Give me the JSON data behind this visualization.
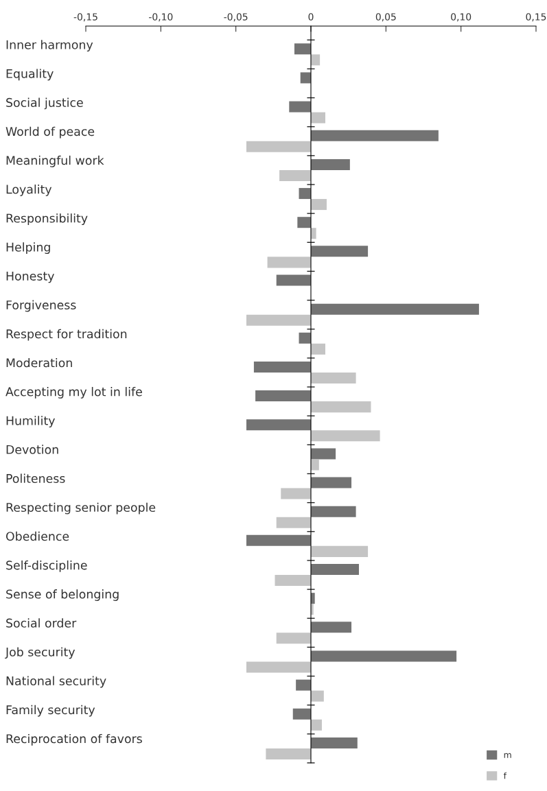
{
  "chart_data": {
    "type": "bar",
    "orientation": "horizontal",
    "categories": [
      "Inner harmony",
      "Equality",
      "Social justice",
      "World of peace",
      "Meaningful work",
      "Loyality",
      "Responsibility",
      "Helping",
      "Honesty",
      "Forgiveness",
      "Respect for tradition",
      "Moderation",
      "Accepting my lot in life",
      "Humility",
      "Devotion",
      "Politeness",
      "Respecting senior people",
      "Obedience",
      "Self-discipline",
      "Sense of belonging",
      "Social order",
      "Job security",
      "National security",
      "Family security",
      "Reciprocation of favors"
    ],
    "series": [
      {
        "name": "m",
        "color": "#737373",
        "values": [
          -0.011,
          -0.007,
          -0.0145,
          0.085,
          0.026,
          -0.008,
          -0.009,
          0.038,
          -0.023,
          0.112,
          -0.008,
          -0.038,
          -0.037,
          -0.043,
          0.0165,
          0.027,
          0.03,
          -0.043,
          0.032,
          0.0026,
          0.027,
          0.097,
          -0.01,
          -0.012,
          0.031
        ]
      },
      {
        "name": "f",
        "color": "#c4c4c4",
        "values": [
          0.006,
          0,
          0.0096,
          -0.043,
          -0.021,
          0.0105,
          0.0035,
          -0.029,
          0,
          -0.043,
          0.0096,
          0.03,
          0.04,
          0.046,
          0.0054,
          -0.02,
          -0.023,
          0.038,
          -0.024,
          0.0017,
          -0.023,
          -0.043,
          0.0086,
          0.0073,
          -0.03
        ]
      }
    ],
    "xlim": [
      -0.15,
      0.15
    ],
    "xticks": [
      {
        "value": -0.15,
        "label": "-0,15"
      },
      {
        "value": -0.1,
        "label": "-0,10"
      },
      {
        "value": -0.05,
        "label": "-0,05"
      },
      {
        "value": 0,
        "label": "0"
      },
      {
        "value": 0.05,
        "label": "0,05"
      },
      {
        "value": 0.1,
        "label": "0,10"
      },
      {
        "value": 0.15,
        "label": "0,15"
      }
    ],
    "legend": "bottom right"
  }
}
